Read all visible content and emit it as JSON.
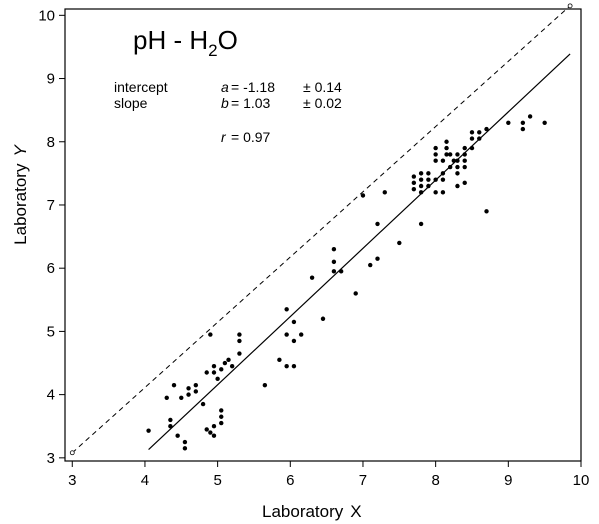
{
  "chart_data": {
    "type": "scatter",
    "title": "pH - H",
    "title_subscript": "2",
    "title_tail": "O",
    "xlabel": "Laboratory",
    "xlabel_symbol": "X",
    "ylabel": "Laboratory",
    "ylabel_symbol": "Y",
    "xlim": [
      2.9,
      10
    ],
    "ylim": [
      2.95,
      10.1
    ],
    "x_ticks": [
      "3",
      "4",
      "5",
      "6",
      "7",
      "8",
      "9",
      "10"
    ],
    "y_ticks": [
      "3",
      "4",
      "5",
      "6",
      "7",
      "8",
      "9",
      "10"
    ],
    "grid": false,
    "stats": {
      "intercept_label": "intercept",
      "slope_label": "slope",
      "a_symbol": "a",
      "a_value": "= -1.18",
      "a_err": "± 0.14",
      "b_symbol": "b",
      "b_value": "= 1.03",
      "b_err": "± 0.02",
      "r_symbol": "r",
      "r_value": "= 0.97"
    },
    "identity_line": {
      "x": [
        3,
        9.85
      ],
      "y": [
        3.08,
        10.15
      ],
      "style": "dashed"
    },
    "regression_line": {
      "x": [
        4.05,
        9.85
      ],
      "y": [
        3.13,
        9.39
      ],
      "style": "solid"
    },
    "points": [
      [
        4.05,
        3.43
      ],
      [
        4.35,
        3.5
      ],
      [
        4.35,
        3.6
      ],
      [
        4.45,
        3.35
      ],
      [
        4.55,
        3.25
      ],
      [
        4.55,
        3.15
      ],
      [
        4.3,
        3.95
      ],
      [
        4.4,
        4.15
      ],
      [
        4.5,
        3.95
      ],
      [
        4.6,
        4.0
      ],
      [
        4.6,
        4.1
      ],
      [
        4.7,
        4.05
      ],
      [
        4.7,
        4.15
      ],
      [
        4.8,
        3.85
      ],
      [
        4.85,
        4.35
      ],
      [
        4.9,
        4.95
      ],
      [
        4.95,
        4.35
      ],
      [
        4.95,
        4.45
      ],
      [
        5.0,
        4.25
      ],
      [
        5.05,
        4.4
      ],
      [
        5.1,
        4.5
      ],
      [
        5.15,
        4.55
      ],
      [
        5.2,
        4.45
      ],
      [
        5.3,
        4.65
      ],
      [
        5.3,
        4.85
      ],
      [
        5.3,
        4.95
      ],
      [
        4.85,
        3.45
      ],
      [
        4.9,
        3.4
      ],
      [
        4.95,
        3.5
      ],
      [
        4.95,
        3.35
      ],
      [
        5.05,
        3.55
      ],
      [
        5.05,
        3.65
      ],
      [
        5.05,
        3.75
      ],
      [
        5.65,
        4.15
      ],
      [
        5.85,
        4.55
      ],
      [
        5.95,
        4.45
      ],
      [
        5.95,
        4.95
      ],
      [
        5.95,
        5.35
      ],
      [
        6.05,
        4.85
      ],
      [
        6.05,
        5.15
      ],
      [
        6.05,
        4.45
      ],
      [
        6.15,
        4.95
      ],
      [
        6.45,
        5.2
      ],
      [
        6.3,
        5.85
      ],
      [
        6.6,
        5.95
      ],
      [
        6.6,
        6.1
      ],
      [
        6.6,
        6.3
      ],
      [
        6.7,
        5.95
      ],
      [
        6.9,
        5.6
      ],
      [
        7.0,
        7.15
      ],
      [
        7.1,
        6.05
      ],
      [
        7.2,
        6.15
      ],
      [
        7.2,
        6.7
      ],
      [
        7.3,
        7.2
      ],
      [
        7.5,
        6.4
      ],
      [
        7.8,
        6.7
      ],
      [
        7.7,
        7.25
      ],
      [
        7.7,
        7.35
      ],
      [
        7.7,
        7.45
      ],
      [
        7.8,
        7.2
      ],
      [
        7.8,
        7.3
      ],
      [
        7.8,
        7.4
      ],
      [
        7.8,
        7.5
      ],
      [
        7.9,
        7.3
      ],
      [
        7.9,
        7.4
      ],
      [
        7.9,
        7.5
      ],
      [
        8.0,
        7.2
      ],
      [
        8.0,
        7.4
      ],
      [
        8.0,
        7.7
      ],
      [
        8.0,
        7.8
      ],
      [
        8.0,
        7.9
      ],
      [
        8.1,
        7.2
      ],
      [
        8.1,
        7.4
      ],
      [
        8.1,
        7.5
      ],
      [
        8.1,
        7.7
      ],
      [
        8.15,
        7.8
      ],
      [
        8.15,
        7.9
      ],
      [
        8.15,
        8.0
      ],
      [
        8.2,
        7.6
      ],
      [
        8.2,
        7.8
      ],
      [
        8.25,
        7.7
      ],
      [
        8.3,
        7.3
      ],
      [
        8.3,
        7.5
      ],
      [
        8.3,
        7.6
      ],
      [
        8.3,
        7.7
      ],
      [
        8.3,
        7.8
      ],
      [
        8.4,
        7.35
      ],
      [
        8.4,
        7.6
      ],
      [
        8.4,
        7.7
      ],
      [
        8.4,
        7.8
      ],
      [
        8.4,
        7.9
      ],
      [
        8.5,
        7.9
      ],
      [
        8.5,
        8.05
      ],
      [
        8.5,
        8.15
      ],
      [
        8.6,
        8.05
      ],
      [
        8.6,
        8.15
      ],
      [
        8.7,
        8.2
      ],
      [
        8.7,
        6.9
      ],
      [
        9.0,
        8.3
      ],
      [
        9.2,
        8.2
      ],
      [
        9.2,
        8.3
      ],
      [
        9.3,
        8.4
      ],
      [
        9.5,
        8.3
      ]
    ]
  }
}
